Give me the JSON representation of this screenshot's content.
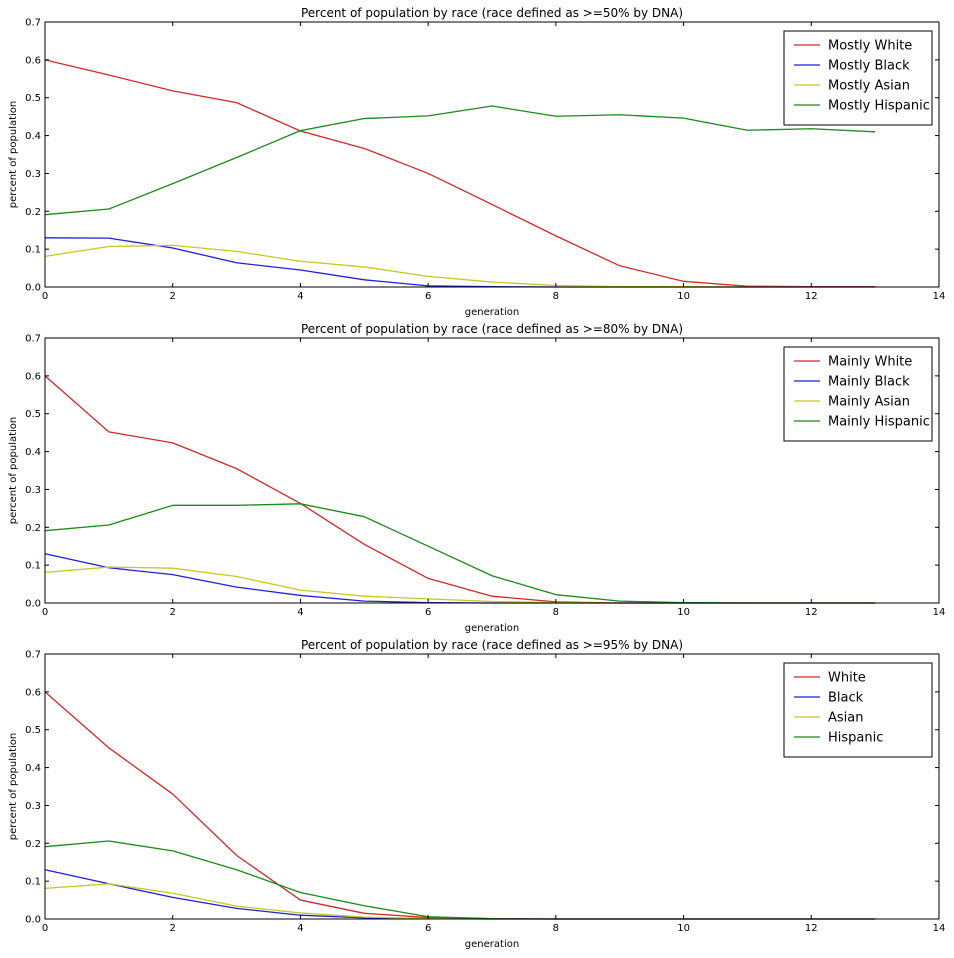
{
  "chart_data": [
    {
      "type": "line",
      "title": "Percent of population by race (race defined as >=50% by DNA)",
      "xlabel": "generation",
      "ylabel": "percent of population",
      "xlim": [
        0,
        14
      ],
      "ylim": [
        0,
        0.7
      ],
      "xticks": [
        0,
        2,
        4,
        6,
        8,
        10,
        12,
        14
      ],
      "xtick_labels": [
        "0",
        "2",
        "4",
        "6",
        "8",
        "10",
        "12",
        "14"
      ],
      "yticks": [
        0,
        0.1,
        0.2,
        0.3,
        0.4,
        0.5,
        0.6,
        0.7
      ],
      "ytick_labels": [
        "0.0",
        "0.1",
        "0.2",
        "0.3",
        "0.4",
        "0.5",
        "0.6",
        "0.7"
      ],
      "grid": false,
      "legend_position": "top-right",
      "x": [
        0,
        1,
        2,
        3,
        4,
        5,
        6,
        7,
        8,
        9,
        10,
        11,
        12,
        13
      ],
      "series": [
        {
          "name": "Mostly White",
          "color": "#d62728",
          "values": [
            0.6,
            0.56,
            0.518,
            0.487,
            0.412,
            0.366,
            0.3,
            0.218,
            0.135,
            0.056,
            0.015,
            0.002,
            0.001,
            0.001
          ]
        },
        {
          "name": "Mostly Black",
          "color": "#1f1fdf",
          "values": [
            0.13,
            0.129,
            0.103,
            0.064,
            0.045,
            0.019,
            0.003,
            0.001,
            0.0,
            0.0,
            0.0,
            0.0,
            0.0,
            0.0
          ]
        },
        {
          "name": "Mostly Asian",
          "color": "#c8c81e",
          "values": [
            0.081,
            0.107,
            0.11,
            0.094,
            0.068,
            0.053,
            0.028,
            0.013,
            0.004,
            0.001,
            0.001,
            0.0,
            0.0,
            0.0
          ]
        },
        {
          "name": "Mostly Hispanic",
          "color": "#1b8a1b",
          "values": [
            0.191,
            0.206,
            0.273,
            0.342,
            0.413,
            0.445,
            0.452,
            0.478,
            0.451,
            0.455,
            0.446,
            0.414,
            0.418,
            0.41
          ]
        }
      ]
    },
    {
      "type": "line",
      "title": "Percent of population by race (race defined as >=80% by DNA)",
      "xlabel": "generation",
      "ylabel": "percent of population",
      "xlim": [
        0,
        14
      ],
      "ylim": [
        0,
        0.7
      ],
      "xticks": [
        0,
        2,
        4,
        6,
        8,
        10,
        12,
        14
      ],
      "xtick_labels": [
        "0",
        "2",
        "4",
        "6",
        "8",
        "10",
        "12",
        "14"
      ],
      "yticks": [
        0,
        0.1,
        0.2,
        0.3,
        0.4,
        0.5,
        0.6,
        0.7
      ],
      "ytick_labels": [
        "0.0",
        "0.1",
        "0.2",
        "0.3",
        "0.4",
        "0.5",
        "0.6",
        "0.7"
      ],
      "grid": false,
      "legend_position": "top-right",
      "x": [
        0,
        1,
        2,
        3,
        4,
        5,
        6,
        7,
        8,
        9,
        10,
        11,
        12,
        13
      ],
      "series": [
        {
          "name": "Mainly White",
          "color": "#d62728",
          "values": [
            0.6,
            0.452,
            0.423,
            0.355,
            0.263,
            0.155,
            0.065,
            0.018,
            0.003,
            0.0,
            0.0,
            0.0,
            0.0,
            0.0
          ]
        },
        {
          "name": "Mainly Black",
          "color": "#1f1fdf",
          "values": [
            0.13,
            0.093,
            0.075,
            0.042,
            0.02,
            0.005,
            0.001,
            0.0,
            0.0,
            0.0,
            0.0,
            0.0,
            0.0,
            0.0
          ]
        },
        {
          "name": "Mainly Asian",
          "color": "#c8c81e",
          "values": [
            0.081,
            0.095,
            0.092,
            0.07,
            0.034,
            0.018,
            0.011,
            0.004,
            0.001,
            0.0,
            0.0,
            0.0,
            0.0,
            0.0
          ]
        },
        {
          "name": "Mainly Hispanic",
          "color": "#1b8a1b",
          "values": [
            0.191,
            0.206,
            0.258,
            0.258,
            0.262,
            0.228,
            0.15,
            0.072,
            0.022,
            0.005,
            0.001,
            0.0,
            0.0,
            0.0
          ]
        }
      ]
    },
    {
      "type": "line",
      "title": "Percent of population by race (race defined as >=95% by DNA)",
      "xlabel": "generation",
      "ylabel": "percent of population",
      "xlim": [
        0,
        14
      ],
      "ylim": [
        0,
        0.7
      ],
      "xticks": [
        0,
        2,
        4,
        6,
        8,
        10,
        12,
        14
      ],
      "xtick_labels": [
        "0",
        "2",
        "4",
        "6",
        "8",
        "10",
        "12",
        "14"
      ],
      "yticks": [
        0,
        0.1,
        0.2,
        0.3,
        0.4,
        0.5,
        0.6,
        0.7
      ],
      "ytick_labels": [
        "0.0",
        "0.1",
        "0.2",
        "0.3",
        "0.4",
        "0.5",
        "0.6",
        "0.7"
      ],
      "grid": false,
      "legend_position": "top-right",
      "x": [
        0,
        1,
        2,
        3,
        4,
        5,
        6,
        7,
        8,
        9,
        10,
        11,
        12,
        13
      ],
      "series": [
        {
          "name": "White",
          "color": "#d62728",
          "values": [
            0.6,
            0.452,
            0.33,
            0.168,
            0.05,
            0.015,
            0.004,
            0.001,
            0.0,
            0.0,
            0.0,
            0.0,
            0.0,
            0.0
          ]
        },
        {
          "name": "Black",
          "color": "#1f1fdf",
          "values": [
            0.13,
            0.093,
            0.057,
            0.028,
            0.01,
            0.003,
            0.001,
            0.0,
            0.0,
            0.0,
            0.0,
            0.0,
            0.0,
            0.0
          ]
        },
        {
          "name": "Asian",
          "color": "#c8c81e",
          "values": [
            0.081,
            0.093,
            0.068,
            0.034,
            0.016,
            0.005,
            0.001,
            0.0,
            0.0,
            0.0,
            0.0,
            0.0,
            0.0,
            0.0
          ]
        },
        {
          "name": "Hispanic",
          "color": "#1b8a1b",
          "values": [
            0.191,
            0.206,
            0.18,
            0.13,
            0.07,
            0.035,
            0.006,
            0.001,
            0.0,
            0.0,
            0.0,
            0.0,
            0.0,
            0.0
          ]
        }
      ]
    }
  ]
}
